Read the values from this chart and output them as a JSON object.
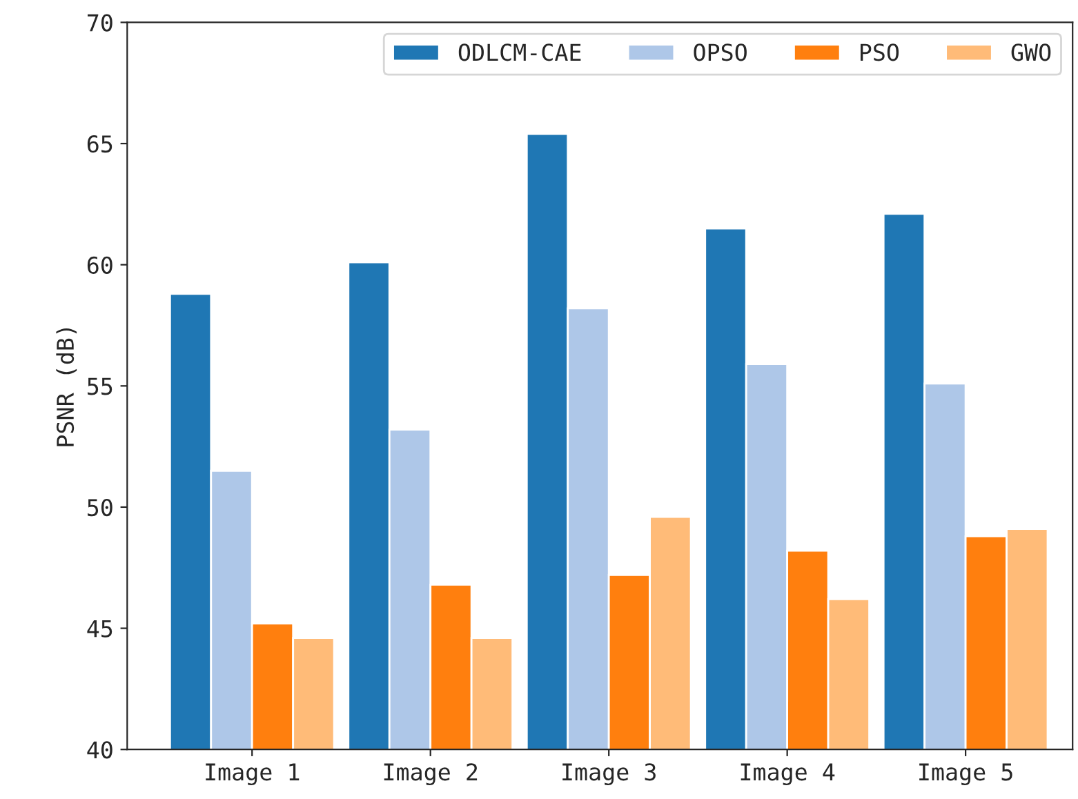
{
  "chart_data": {
    "type": "bar",
    "ylabel": "PSNR (dB)",
    "categories": [
      "Image 1",
      "Image 2",
      "Image 3",
      "Image 4",
      "Image 5"
    ],
    "series": [
      {
        "name": "ODLCM-CAE",
        "color": "#1f77b4",
        "values": [
          58.8,
          60.1,
          65.4,
          61.5,
          62.1
        ]
      },
      {
        "name": "OPSO",
        "color": "#aec7e8",
        "values": [
          51.5,
          53.2,
          58.2,
          55.9,
          55.1
        ]
      },
      {
        "name": "PSO",
        "color": "#ff7f0e",
        "values": [
          45.2,
          46.8,
          47.2,
          48.2,
          48.8
        ]
      },
      {
        "name": "GWO",
        "color": "#ffbb78",
        "values": [
          44.6,
          44.6,
          49.6,
          46.2,
          49.1
        ]
      }
    ],
    "ylim": [
      40,
      70
    ],
    "yticks": [
      40,
      45,
      50,
      55,
      60,
      65,
      70
    ],
    "legend": "top right",
    "grid": false
  }
}
